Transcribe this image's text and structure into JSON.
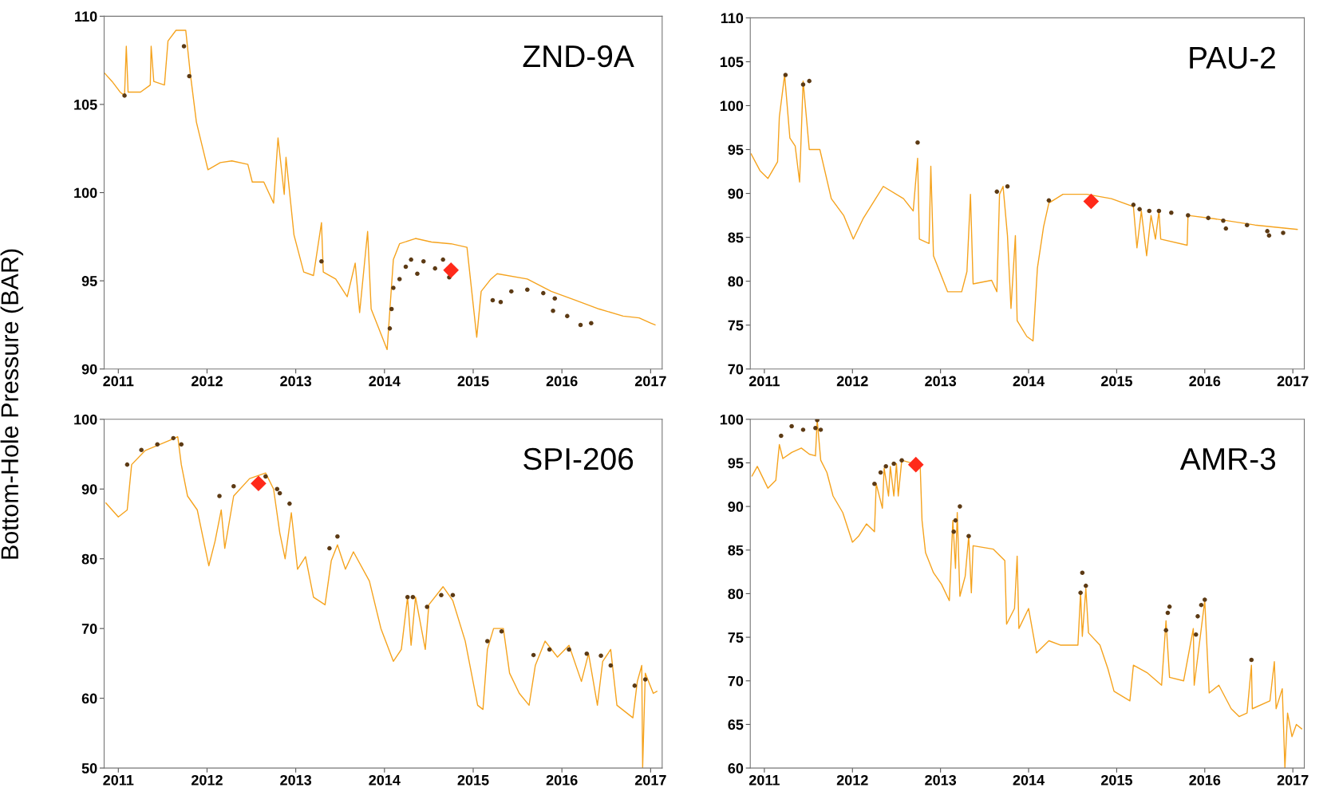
{
  "chart_data": [
    {
      "type": "line",
      "title": "ZND-9A",
      "ylabel": "Bottom-Hole Pressure (BAR)",
      "xlim": [
        2010.84,
        2017.13
      ],
      "xticks": [
        2011,
        2012,
        2013,
        2014,
        2015,
        2016,
        2017
      ],
      "ylim": [
        90,
        110
      ],
      "yticks": [
        90,
        95,
        100,
        105,
        110
      ],
      "series": [
        {
          "color": "#f5a31e",
          "x": [
            2010.84,
            2010.93,
            2011.02,
            2011.07,
            2011.09,
            2011.11,
            2011.25,
            2011.36,
            2011.37,
            2011.4,
            2011.52,
            2011.56,
            2011.65,
            2011.76,
            2011.81,
            2011.88,
            2012.01,
            2012.15,
            2012.28,
            2012.46,
            2012.51,
            2012.64,
            2012.75,
            2012.8,
            2012.87,
            2012.89,
            2012.98,
            2013.09,
            2013.2,
            2013.29,
            2013.31,
            2013.45,
            2013.58,
            2013.67,
            2013.72,
            2013.81,
            2013.85,
            2014.03,
            2014.1,
            2014.17,
            2014.35,
            2014.53,
            2014.75,
            2014.93,
            2015.04,
            2015.09,
            2015.2,
            2015.27,
            2015.61,
            2015.88,
            2016.15,
            2016.42,
            2016.69,
            2016.87,
            2017.0,
            2017.05
          ],
          "values": [
            106.8,
            106.3,
            105.7,
            105.5,
            108.3,
            105.7,
            105.7,
            106.1,
            108.3,
            106.3,
            106.1,
            108.6,
            109.2,
            109.2,
            106.8,
            104,
            101.3,
            101.7,
            101.8,
            101.6,
            100.6,
            100.6,
            99.4,
            103.1,
            99.9,
            102,
            97.6,
            95.5,
            95.3,
            98.3,
            95.5,
            95.1,
            94.1,
            96,
            93.2,
            97.8,
            93.4,
            91.1,
            96.2,
            97.1,
            97.4,
            97.2,
            97.1,
            96.9,
            91.8,
            94.4,
            95.1,
            95.4,
            95.1,
            94.4,
            93.9,
            93.4,
            93,
            92.9,
            92.6,
            92.5
          ]
        },
        {
          "type": "scatter",
          "marker": "circle",
          "color": "#5c3a14",
          "x": [
            2011.07,
            2011.74,
            2011.8,
            2013.29,
            2014.06,
            2014.08,
            2014.1,
            2014.17,
            2014.24,
            2014.3,
            2014.37,
            2014.44,
            2014.57,
            2014.66,
            2014.73,
            2015.22,
            2015.31,
            2015.43,
            2015.61,
            2015.79,
            2015.92,
            2015.9,
            2016.06,
            2016.21,
            2016.33
          ],
          "values": [
            105.5,
            108.3,
            106.6,
            96.1,
            92.3,
            93.4,
            94.6,
            95.1,
            95.8,
            96.2,
            95.4,
            96.1,
            95.7,
            96.2,
            95.2,
            93.9,
            93.8,
            94.4,
            94.5,
            94.3,
            94,
            93.3,
            93,
            92.5,
            92.6
          ]
        },
        {
          "type": "scatter",
          "marker": "diamond",
          "color": "#ff2a1a",
          "x": [
            2014.75
          ],
          "values": [
            95.6
          ]
        }
      ]
    },
    {
      "type": "line",
      "title": "PAU-2",
      "xlim": [
        2010.84,
        2017.13
      ],
      "xticks": [
        2011,
        2012,
        2013,
        2014,
        2015,
        2016,
        2017
      ],
      "ylim": [
        70,
        110
      ],
      "yticks": [
        70,
        75,
        80,
        85,
        90,
        95,
        100,
        105,
        110
      ],
      "series": [
        {
          "color": "#f5a31e",
          "x": [
            2010.85,
            2010.95,
            2011.04,
            2011.15,
            2011.17,
            2011.23,
            2011.29,
            2011.35,
            2011.4,
            2011.44,
            2011.51,
            2011.63,
            2011.76,
            2011.9,
            2012.01,
            2012.12,
            2012.35,
            2012.58,
            2012.69,
            2012.74,
            2012.76,
            2012.87,
            2012.89,
            2012.92,
            2013.08,
            2013.24,
            2013.3,
            2013.34,
            2013.37,
            2013.58,
            2013.64,
            2013.67,
            2013.71,
            2013.76,
            2013.8,
            2013.85,
            2013.87,
            2013.98,
            2014.05,
            2014.1,
            2014.17,
            2014.23,
            2014.39,
            2014.66,
            2014.94,
            2015.19,
            2015.23,
            2015.28,
            2015.34,
            2015.39,
            2015.44,
            2015.48,
            2015.5,
            2015.8,
            2015.81,
            2016.12,
            2016.57,
            2017.05
          ],
          "values": [
            94.5,
            92.6,
            91.7,
            93.6,
            98.7,
            103.5,
            96.3,
            95.4,
            91.3,
            102.8,
            95,
            95,
            89.4,
            87.5,
            84.8,
            87.1,
            90.8,
            89.4,
            88,
            94,
            84.8,
            84.3,
            93.1,
            82.9,
            78.8,
            78.8,
            81.1,
            89.9,
            79.7,
            80.1,
            78.8,
            89.9,
            90.8,
            85.2,
            76.9,
            85.2,
            75.5,
            73.7,
            73.2,
            81.5,
            86.2,
            88.9,
            89.9,
            89.9,
            89.4,
            88.5,
            83.8,
            88,
            82.9,
            87.5,
            84.8,
            88,
            84.8,
            84.1,
            87.5,
            87.1,
            86.4,
            85.9
          ]
        },
        {
          "type": "scatter",
          "marker": "circle",
          "color": "#5c3a14",
          "x": [
            2011.24,
            2011.44,
            2011.51,
            2012.74,
            2013.64,
            2013.76,
            2014.23,
            2015.19,
            2015.26,
            2015.37,
            2015.48,
            2015.62,
            2015.81,
            2016.04,
            2016.21,
            2016.24,
            2016.48,
            2016.71,
            2016.73,
            2016.89
          ],
          "values": [
            103.5,
            102.4,
            102.8,
            95.8,
            90.2,
            90.8,
            89.2,
            88.7,
            88.2,
            88,
            88,
            87.8,
            87.5,
            87.2,
            86.9,
            86,
            86.4,
            85.7,
            85.2,
            85.5
          ]
        },
        {
          "type": "scatter",
          "marker": "diamond",
          "color": "#ff2a1a",
          "x": [
            2014.71
          ],
          "values": [
            89.1
          ]
        }
      ]
    },
    {
      "type": "line",
      "title": "SPI-206",
      "xlim": [
        2010.84,
        2017.13
      ],
      "xticks": [
        2011,
        2012,
        2013,
        2014,
        2015,
        2016,
        2017
      ],
      "ylim": [
        50,
        100
      ],
      "yticks": [
        50,
        60,
        70,
        80,
        90,
        100
      ],
      "series": [
        {
          "color": "#f5a31e",
          "x": [
            2010.86,
            2010.93,
            2011.0,
            2011.1,
            2011.15,
            2011.3,
            2011.58,
            2011.67,
            2011.71,
            2011.78,
            2011.89,
            2012.02,
            2012.09,
            2012.16,
            2012.2,
            2012.3,
            2012.48,
            2012.66,
            2012.75,
            2012.82,
            2012.88,
            2012.95,
            2013.02,
            2013.11,
            2013.2,
            2013.33,
            2013.4,
            2013.47,
            2013.56,
            2013.65,
            2013.83,
            2013.96,
            2014.1,
            2014.19,
            2014.26,
            2014.3,
            2014.35,
            2014.46,
            2014.5,
            2014.66,
            2014.77,
            2014.91,
            2015.05,
            2015.11,
            2015.16,
            2015.23,
            2015.34,
            2015.41,
            2015.52,
            2015.63,
            2015.7,
            2015.81,
            2015.95,
            2016.08,
            2016.22,
            2016.3,
            2016.4,
            2016.46,
            2016.55,
            2016.62,
            2016.8,
            2016.85,
            2016.9,
            2016.91,
            2016.94,
            2017.03,
            2017.07
          ],
          "values": [
            88,
            87,
            86,
            87,
            93.5,
            95.5,
            97,
            97.5,
            93.5,
            89,
            87,
            79,
            82.5,
            87,
            81.5,
            89,
            91.5,
            92.3,
            90,
            83.7,
            80,
            86.6,
            78.5,
            80.3,
            74.5,
            73.4,
            79.7,
            82,
            78.5,
            81,
            76.8,
            70,
            65.3,
            67,
            74.5,
            67.6,
            74.5,
            67,
            73.4,
            76,
            74,
            68.2,
            59,
            58.4,
            67,
            70,
            70,
            63.6,
            60.7,
            59,
            64.7,
            68.2,
            65.9,
            67.6,
            62.4,
            66.4,
            59,
            65.3,
            67,
            59,
            57.2,
            62.4,
            64.7,
            50,
            63.6,
            60.7,
            61
          ]
        },
        {
          "type": "scatter",
          "marker": "circle",
          "color": "#5c3a14",
          "x": [
            2011.1,
            2011.26,
            2011.44,
            2011.62,
            2011.71,
            2012.14,
            2012.3,
            2012.66,
            2012.79,
            2012.82,
            2012.93,
            2013.38,
            2013.47,
            2014.26,
            2014.32,
            2014.48,
            2014.64,
            2014.77,
            2015.16,
            2015.32,
            2015.68,
            2015.86,
            2016.08,
            2016.28,
            2016.44,
            2016.55,
            2016.82,
            2016.94
          ],
          "values": [
            93.5,
            95.6,
            96.4,
            97.3,
            96.4,
            89,
            90.4,
            91.8,
            90,
            89.4,
            87.9,
            81.5,
            83.2,
            74.5,
            74.5,
            73.1,
            74.8,
            74.8,
            68.2,
            69.6,
            66.2,
            67,
            67,
            66.4,
            66.1,
            64.7,
            61.8,
            62.7
          ]
        },
        {
          "type": "scatter",
          "marker": "diamond",
          "color": "#ff2a1a",
          "x": [
            2012.58
          ],
          "values": [
            90.8
          ]
        }
      ]
    },
    {
      "type": "line",
      "title": "AMR-3",
      "xlim": [
        2010.84,
        2017.13
      ],
      "xticks": [
        2011,
        2012,
        2013,
        2014,
        2015,
        2016,
        2017
      ],
      "ylim": [
        60,
        100
      ],
      "yticks": [
        60,
        65,
        70,
        75,
        80,
        85,
        90,
        95,
        100
      ],
      "series": [
        {
          "color": "#f5a31e",
          "x": [
            2010.86,
            2010.92,
            2011.04,
            2011.13,
            2011.17,
            2011.21,
            2011.31,
            2011.42,
            2011.51,
            2011.58,
            2011.6,
            2011.64,
            2011.71,
            2011.78,
            2011.89,
            2012.0,
            2012.07,
            2012.16,
            2012.25,
            2012.27,
            2012.34,
            2012.36,
            2012.41,
            2012.43,
            2012.47,
            2012.5,
            2012.52,
            2012.56,
            2012.7,
            2012.77,
            2012.79,
            2012.83,
            2012.92,
            2013.01,
            2013.1,
            2013.14,
            2013.17,
            2013.19,
            2013.22,
            2013.28,
            2013.32,
            2013.35,
            2013.37,
            2013.6,
            2013.73,
            2013.75,
            2013.84,
            2013.87,
            2013.89,
            2014.0,
            2014.09,
            2014.23,
            2014.36,
            2014.56,
            2014.59,
            2014.61,
            2014.65,
            2014.68,
            2014.81,
            2014.9,
            2014.97,
            2015.15,
            2015.19,
            2015.35,
            2015.51,
            2015.56,
            2015.6,
            2015.76,
            2015.87,
            2015.88,
            2016.0,
            2016.05,
            2016.16,
            2016.3,
            2016.39,
            2016.48,
            2016.53,
            2016.54,
            2016.74,
            2016.79,
            2016.81,
            2016.88,
            2016.91,
            2016.94,
            2016.99,
            2017.04,
            2017.1
          ],
          "values": [
            93.5,
            94.6,
            92.1,
            93,
            97.1,
            95.5,
            96.2,
            96.7,
            96,
            95.8,
            99.9,
            95.3,
            93.9,
            91.2,
            89.3,
            85.9,
            86.6,
            88,
            87.1,
            92.6,
            89.8,
            94.4,
            91.2,
            94.6,
            91.2,
            94.9,
            91.2,
            95.3,
            94.9,
            94.4,
            88.4,
            84.7,
            82.4,
            81.1,
            79.2,
            88.4,
            82.9,
            89.3,
            79.7,
            82,
            86.6,
            80.1,
            85.5,
            85.1,
            83.8,
            76.5,
            78.3,
            84.3,
            76,
            78.3,
            73.2,
            74.6,
            74.1,
            74.1,
            80.1,
            75.1,
            80.6,
            75.5,
            74.1,
            71.4,
            68.8,
            67.7,
            71.8,
            70.9,
            69.5,
            76.9,
            70.4,
            70,
            76,
            69.5,
            79.2,
            68.6,
            69.5,
            66.8,
            65.9,
            66.3,
            71.8,
            66.8,
            67.7,
            72.2,
            66.8,
            69.1,
            60,
            66.3,
            63.6,
            65,
            64.5
          ]
        },
        {
          "type": "scatter",
          "marker": "circle",
          "color": "#5c3a14",
          "x": [
            2011.19,
            2011.31,
            2011.44,
            2011.58,
            2011.6,
            2011.64,
            2012.25,
            2012.32,
            2012.38,
            2012.47,
            2012.56,
            2013.15,
            2013.17,
            2013.22,
            2013.32,
            2014.59,
            2014.61,
            2014.65,
            2015.56,
            2015.58,
            2015.6,
            2015.9,
            2015.92,
            2015.96,
            2016.0,
            2016.53
          ],
          "values": [
            98.1,
            99.2,
            98.8,
            99,
            99.9,
            98.8,
            92.6,
            93.9,
            94.6,
            94.9,
            95.3,
            87.1,
            88.4,
            90,
            86.6,
            80.1,
            82.4,
            80.9,
            75.8,
            77.8,
            78.5,
            75.3,
            77.4,
            78.7,
            79.3,
            72.4
          ]
        },
        {
          "type": "scatter",
          "marker": "diamond",
          "color": "#ff2a1a",
          "x": [
            2012.72
          ],
          "values": [
            94.8
          ]
        }
      ]
    }
  ]
}
